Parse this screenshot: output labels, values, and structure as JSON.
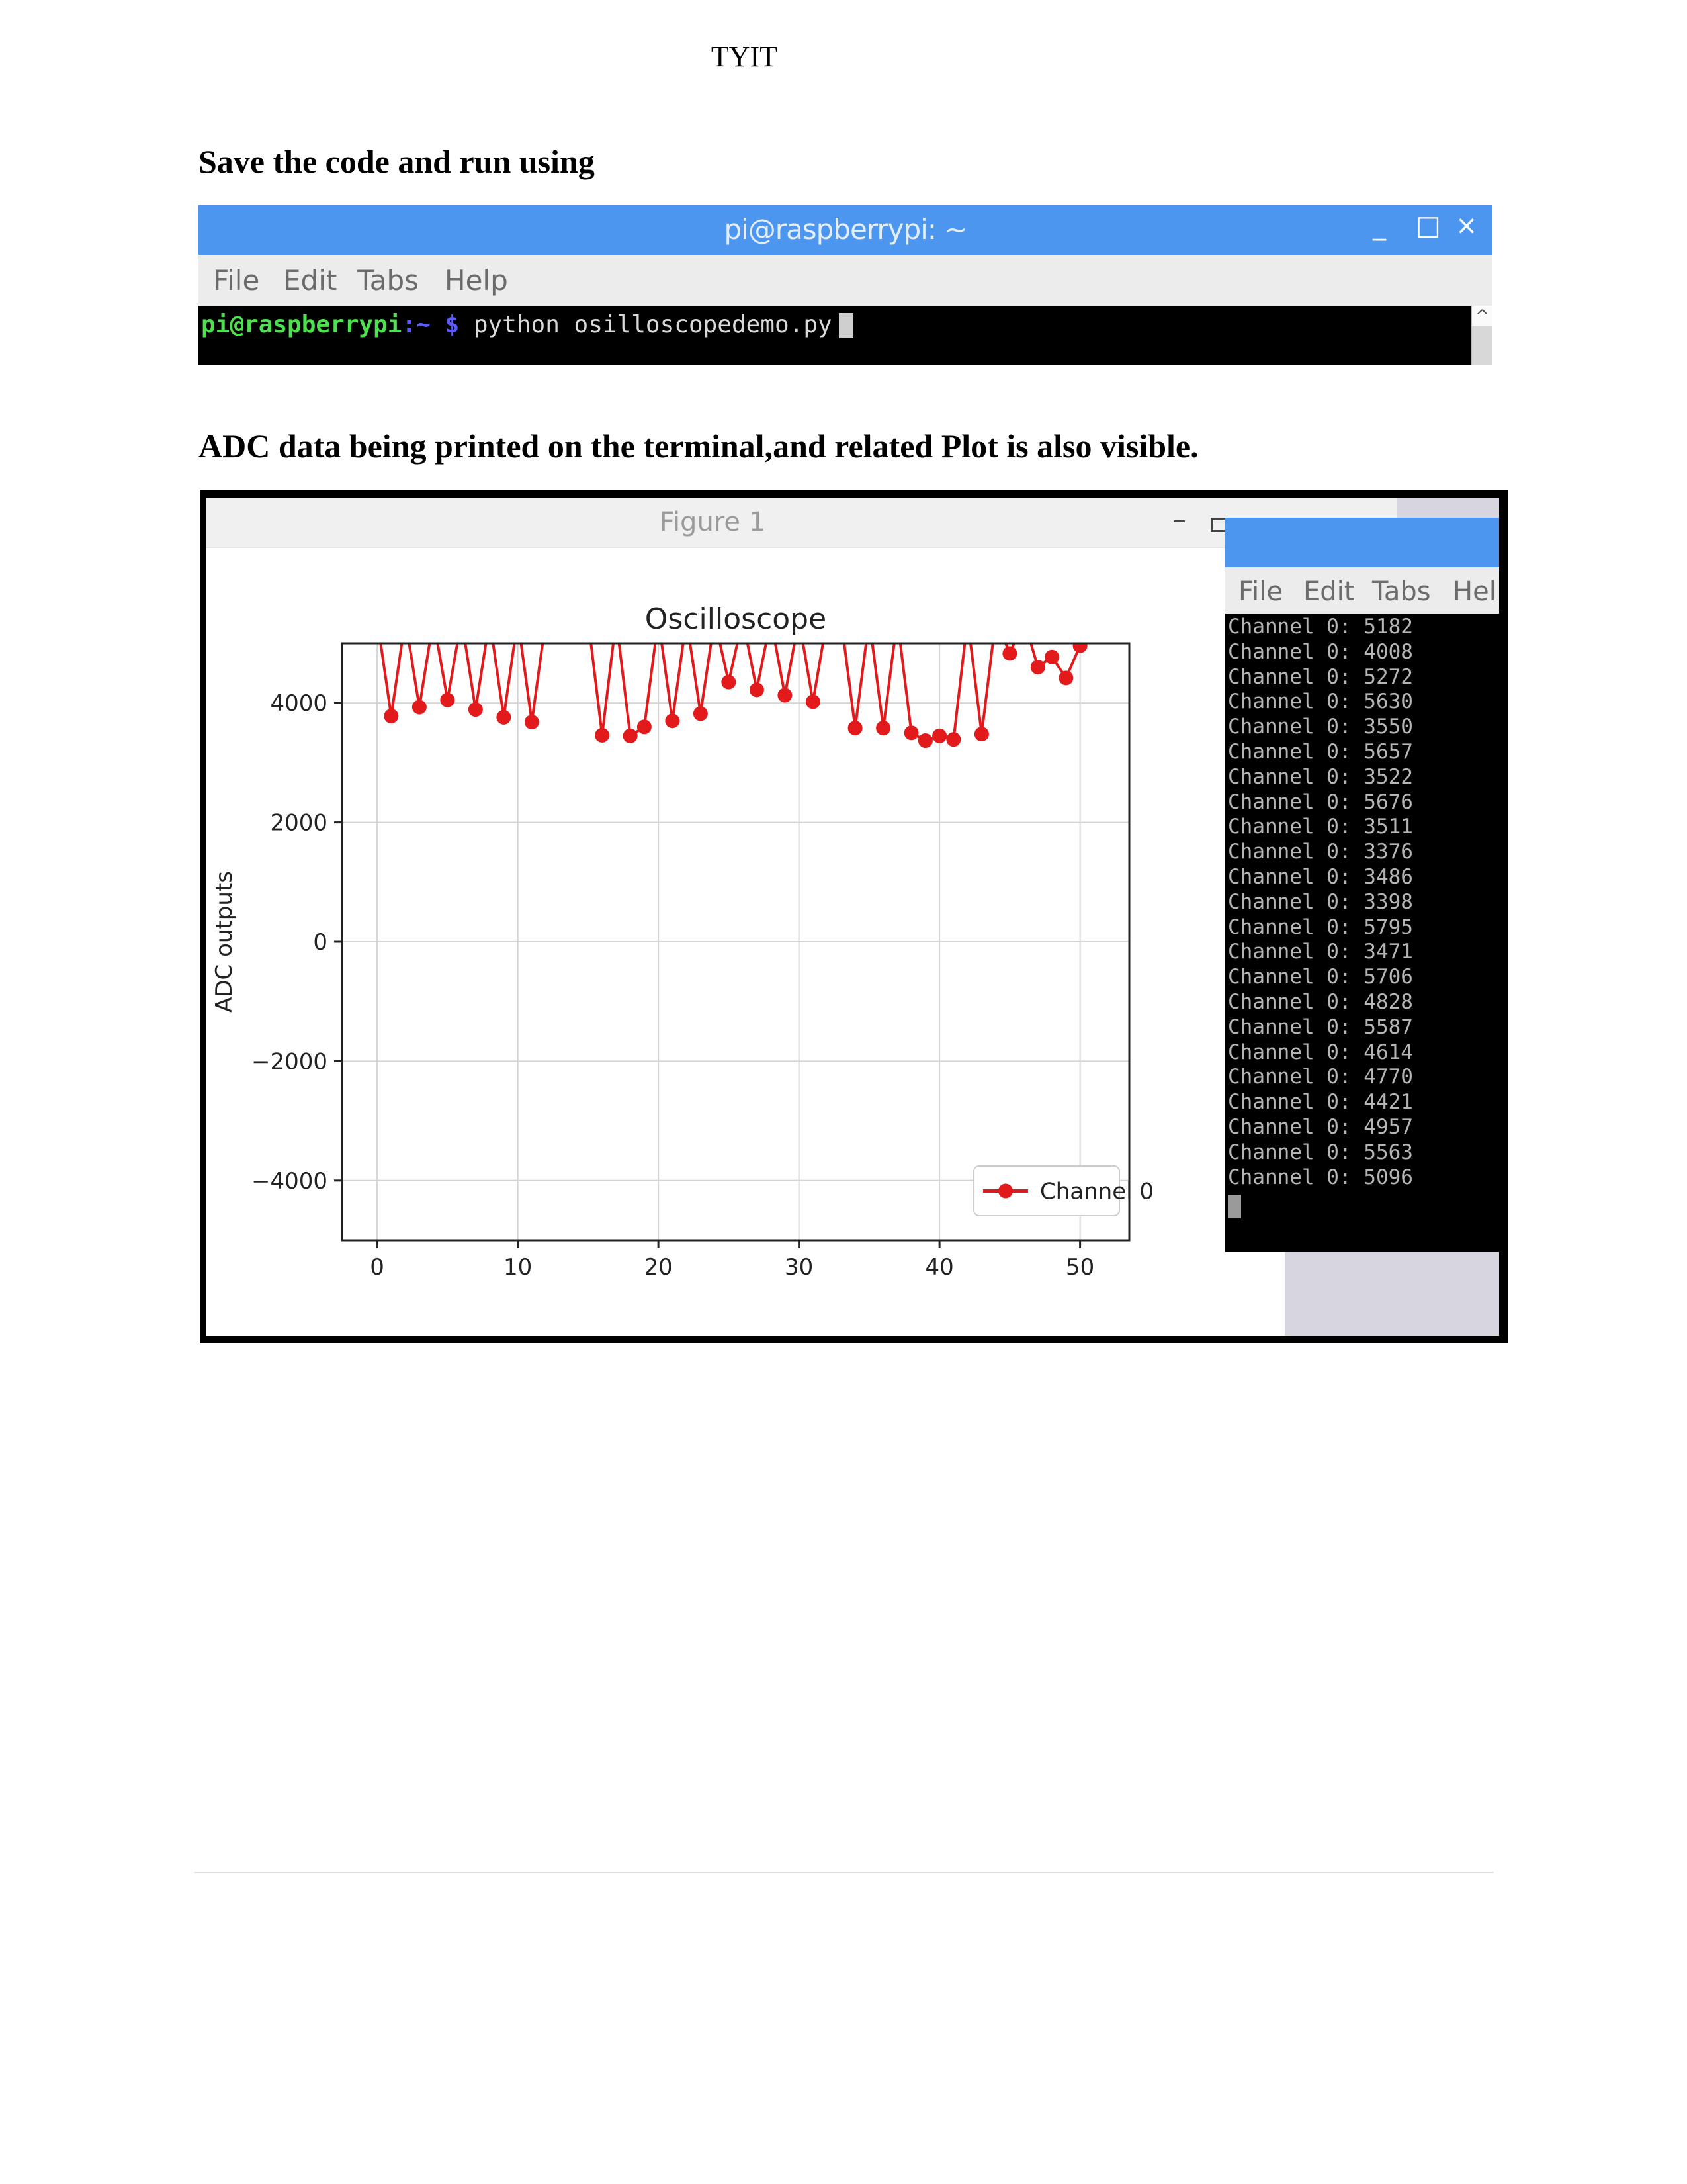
{
  "header": {
    "text": "TYIT"
  },
  "section1": {
    "heading": "Save the code and run using"
  },
  "terminal1": {
    "title": "pi@raspberrypi: ~",
    "window_controls": {
      "minimize": "_",
      "maximize": "□",
      "close": "×"
    },
    "menu": [
      "File",
      "Edit",
      "Tabs",
      "Help"
    ],
    "prompt_user": "pi@raspberrypi",
    "prompt_path": ":~ ",
    "prompt_symbol": "$",
    "command": " python osilloscopedemo.py"
  },
  "section2": {
    "heading": "ADC data being printed on the terminal,and related Plot is also visible."
  },
  "figure_window": {
    "title": "Figure 1",
    "minimize": "–"
  },
  "terminal2": {
    "menu": [
      "File",
      "Edit",
      "Tabs",
      "Hel"
    ],
    "lines": [
      "Channel 0: 5182",
      "Channel 0: 4008",
      "Channel 0: 5272",
      "Channel 0: 5630",
      "Channel 0: 3550",
      "Channel 0: 5657",
      "Channel 0: 3522",
      "Channel 0: 5676",
      "Channel 0: 3511",
      "Channel 0: 3376",
      "Channel 0: 3486",
      "Channel 0: 3398",
      "Channel 0: 5795",
      "Channel 0: 3471",
      "Channel 0: 5706",
      "Channel 0: 4828",
      "Channel 0: 5587",
      "Channel 0: 4614",
      "Channel 0: 4770",
      "Channel 0: 4421",
      "Channel 0: 4957",
      "Channel 0: 5563",
      "Channel 0: 5096"
    ]
  },
  "chart_data": {
    "type": "line",
    "title": "Oscilloscope",
    "xlabel": "",
    "ylabel": "ADC outputs",
    "xlim": [
      -2.5,
      53.5
    ],
    "ylim": [
      -5000,
      5000
    ],
    "xticks": [
      0,
      10,
      20,
      30,
      40,
      50
    ],
    "yticks": [
      -4000,
      -2000,
      0,
      2000,
      4000
    ],
    "ytick_labels": [
      "−4000",
      "−2000",
      "0",
      "2000",
      "4000"
    ],
    "grid": true,
    "legend_position": "lower-right",
    "series": [
      {
        "name": "Channel 0",
        "color": "#e31a1c",
        "marker": "circle",
        "x": [
          0,
          1,
          2,
          3,
          4,
          5,
          6,
          7,
          8,
          9,
          10,
          11,
          12,
          13,
          14,
          15,
          16,
          17,
          18,
          19,
          20,
          21,
          22,
          23,
          24,
          25,
          26,
          27,
          28,
          29,
          30,
          31,
          32,
          33,
          34,
          35,
          36,
          37,
          38,
          39,
          40,
          41,
          42,
          43,
          44,
          45,
          46,
          47,
          48,
          49,
          50
        ],
        "y": [
          5400,
          3780,
          5400,
          3930,
          5400,
          4050,
          5400,
          3890,
          5400,
          3760,
          5400,
          3680,
          5400,
          5400,
          5400,
          5400,
          3460,
          5400,
          3450,
          3600,
          5400,
          3700,
          5400,
          3820,
          5400,
          4350,
          5400,
          4220,
          5400,
          4130,
          5400,
          4020,
          5400,
          5400,
          3580,
          5400,
          3580,
          5400,
          3500,
          3370,
          3450,
          3390,
          5400,
          3480,
          5400,
          4830,
          5400,
          4600,
          4770,
          4420,
          4960
        ]
      }
    ]
  }
}
